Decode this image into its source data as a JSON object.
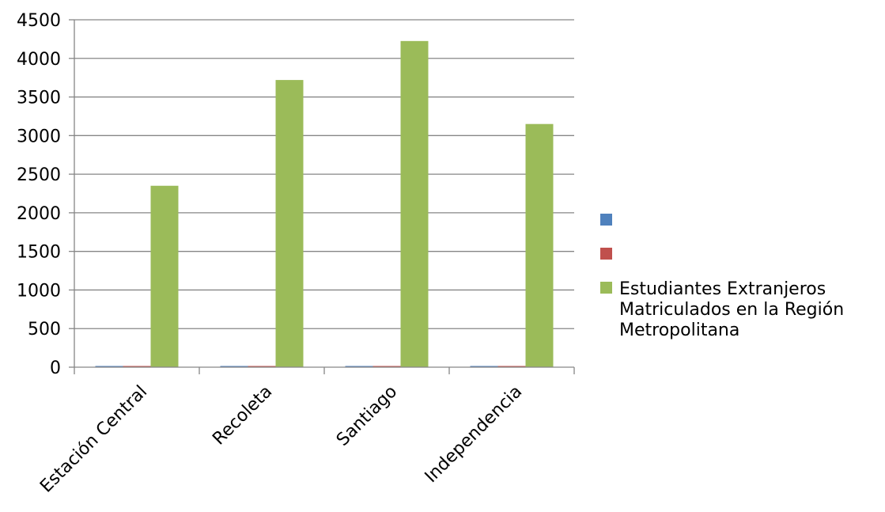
{
  "chart_data": {
    "type": "bar",
    "title": "",
    "xlabel": "",
    "ylabel": "",
    "categories": [
      "Estación Central",
      "Recoleta",
      "Santiago",
      "Independencia"
    ],
    "series": [
      {
        "name": "",
        "color": "#4f81bd",
        "values": [
          0,
          0,
          0,
          0
        ]
      },
      {
        "name": "",
        "color": "#c0504d",
        "values": [
          0,
          0,
          0,
          0
        ]
      },
      {
        "name": "Estudiantes Extranjeros Matriculados en la Región Metropolitana",
        "color": "#9bbb59",
        "values": [
          2350,
          3720,
          4225,
          3150
        ]
      }
    ],
    "ylim": [
      0,
      4500
    ],
    "yticks": [
      "0",
      "500",
      "1000",
      "1500",
      "2000",
      "2500",
      "3000",
      "3500",
      "4000",
      "4500"
    ],
    "grid": true,
    "legend_position": "right"
  }
}
